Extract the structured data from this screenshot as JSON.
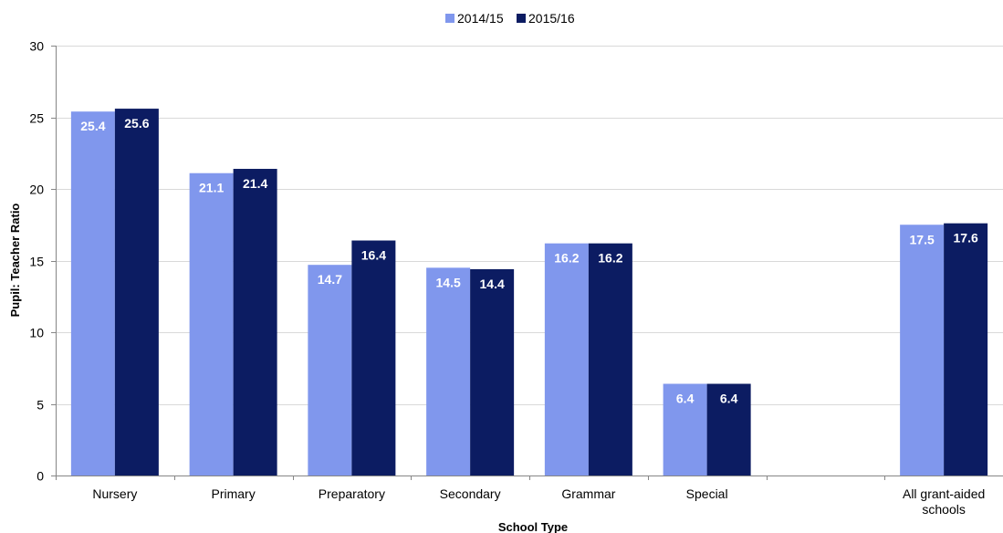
{
  "chart_data": {
    "type": "bar",
    "title": "",
    "xlabel": "School Type",
    "ylabel": "Pupil: Teacher Ratio",
    "ylim": [
      0,
      30
    ],
    "yticks": [
      "0",
      "5",
      "10",
      "15",
      "20",
      "25",
      "30"
    ],
    "grid": true,
    "legend_position": "top-center",
    "categories": [
      [
        "Nursery"
      ],
      [
        "Primary"
      ],
      [
        "Preparatory"
      ],
      [
        "Secondary"
      ],
      [
        "Grammar"
      ],
      [
        "Special"
      ],
      [
        ""
      ],
      [
        "All grant-aided",
        "schools"
      ]
    ],
    "series": [
      {
        "name": "2014/15",
        "color": "#8097ED",
        "values": [
          25.4,
          21.1,
          14.7,
          14.5,
          16.2,
          6.4,
          null,
          17.5
        ]
      },
      {
        "name": "2015/16",
        "color": "#0C1C62",
        "values": [
          25.6,
          21.4,
          16.4,
          14.4,
          16.2,
          6.4,
          null,
          17.6
        ]
      }
    ]
  }
}
